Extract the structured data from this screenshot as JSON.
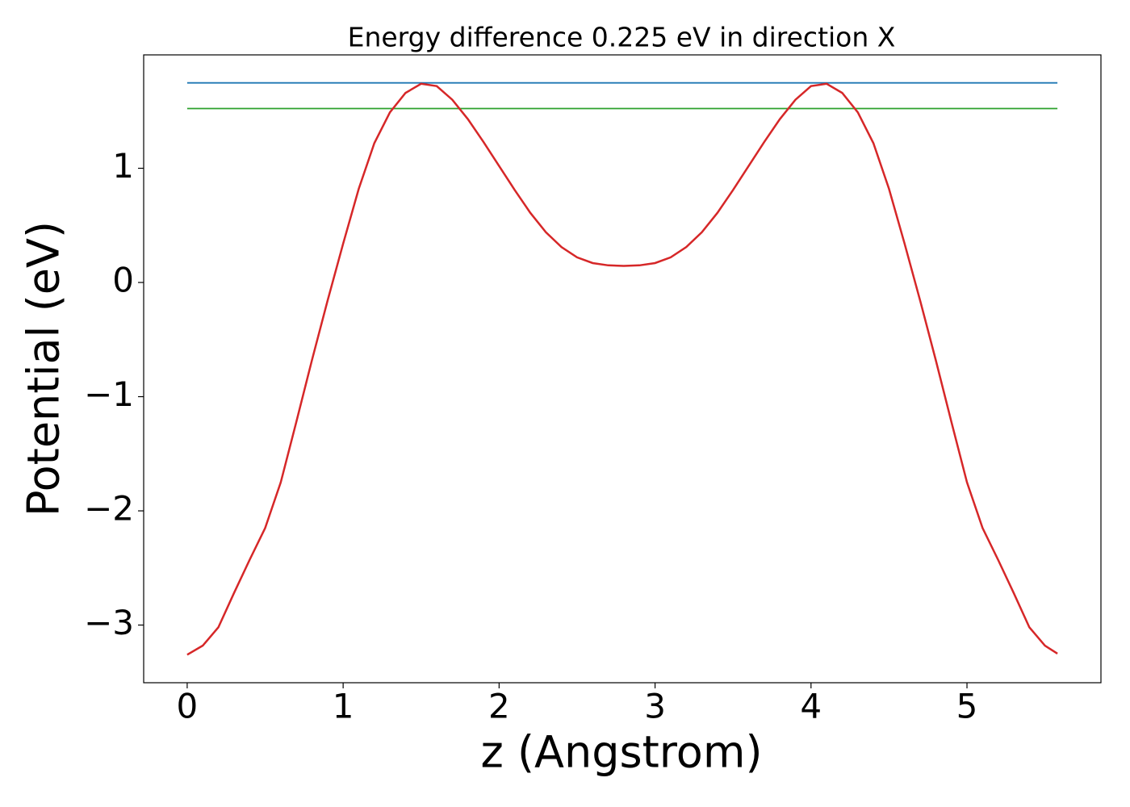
{
  "chart_data": {
    "type": "line",
    "title": "Energy difference 0.225 eV in direction X",
    "xlabel": "z (Angstrom)",
    "ylabel": "Potential (eV)",
    "series": [
      {
        "color": "#d62728",
        "x": [
          0,
          0.1,
          0.2,
          0.3,
          0.4,
          0.5,
          0.6,
          0.7,
          0.8,
          0.9,
          1.0,
          1.1,
          1.2,
          1.3,
          1.4,
          1.5,
          1.6,
          1.7,
          1.8,
          1.9,
          2.0,
          2.1,
          2.2,
          2.3,
          2.4,
          2.5,
          2.6,
          2.7,
          2.8,
          2.9,
          3.0,
          3.1,
          3.2,
          3.3,
          3.4,
          3.5,
          3.6,
          3.7,
          3.8,
          3.9,
          4.0,
          4.1,
          4.2,
          4.3,
          4.4,
          4.5,
          4.6,
          4.7,
          4.8,
          4.9,
          5.0,
          5.1,
          5.2,
          5.3,
          5.4,
          5.5,
          5.58
        ],
        "values": [
          -3.26,
          -3.18,
          -3.02,
          -2.72,
          -2.43,
          -2.15,
          -1.75,
          -1.22,
          -0.68,
          -0.16,
          0.34,
          0.82,
          1.22,
          1.49,
          1.66,
          1.74,
          1.72,
          1.6,
          1.43,
          1.23,
          1.02,
          0.81,
          0.61,
          0.44,
          0.31,
          0.22,
          0.17,
          0.15,
          0.145,
          0.15,
          0.17,
          0.22,
          0.31,
          0.44,
          0.61,
          0.81,
          1.02,
          1.23,
          1.43,
          1.6,
          1.72,
          1.74,
          1.66,
          1.49,
          1.22,
          0.82,
          0.34,
          -0.16,
          -0.68,
          -1.22,
          -1.75,
          -2.15,
          -2.43,
          -2.72,
          -3.02,
          -3.18,
          -3.25
        ]
      },
      {
        "color": "#1f77b4",
        "x": [
          0,
          5.58
        ],
        "values": [
          1.748,
          1.748
        ]
      },
      {
        "color": "#2ca02c",
        "x": [
          0,
          5.58
        ],
        "values": [
          1.523,
          1.523
        ]
      }
    ],
    "xlim": [
      -0.279,
      5.859
    ],
    "ylim": [
      -3.505,
      1.993
    ],
    "xticks": [
      0,
      1,
      2,
      3,
      4,
      5
    ],
    "yticks": [
      {
        "value": -3,
        "label": "−3"
      },
      {
        "value": -2,
        "label": "−2"
      },
      {
        "value": -1,
        "label": "−1"
      },
      0,
      1
    ]
  }
}
